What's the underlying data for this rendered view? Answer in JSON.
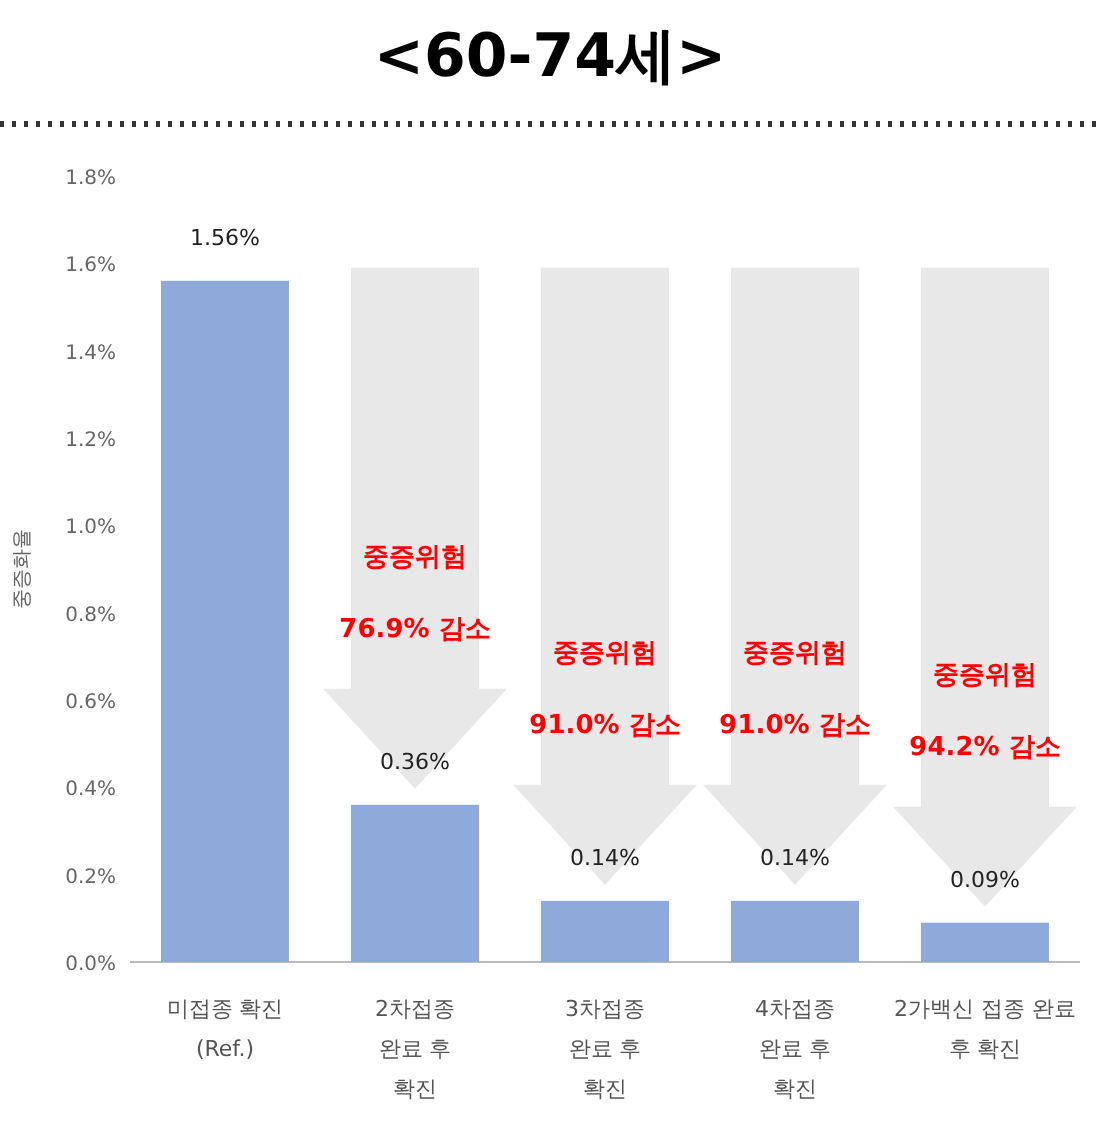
{
  "chart_data": {
    "type": "bar",
    "title": "<60-74세>",
    "ylabel": "중증화율",
    "categories": [
      "미접종 확진\n(Ref.)",
      "2차접종\n완료 후\n확진",
      "3차접종\n완료 후\n확진",
      "4차접종\n완료 후\n확진",
      "2가백신 접종 완료\n후 확진"
    ],
    "values": [
      1.56,
      0.36,
      0.14,
      0.14,
      0.09
    ],
    "value_labels": [
      "1.56%",
      "0.36%",
      "0.14%",
      "0.14%",
      "0.09%"
    ],
    "color": "#8eaadb",
    "ylim": [
      0,
      1.8
    ],
    "yticks": [
      {
        "value": 0,
        "label": "0.0%"
      },
      {
        "value": 0.2,
        "label": "0.2%"
      },
      {
        "value": 0.4,
        "label": "0.4%"
      },
      {
        "value": 0.6,
        "label": "0.6%"
      },
      {
        "value": 0.8,
        "label": "0.8%"
      },
      {
        "value": 1.0,
        "label": "1.0%"
      },
      {
        "value": 1.2,
        "label": "1.2%"
      },
      {
        "value": 1.4,
        "label": "1.4%"
      },
      {
        "value": 1.6,
        "label": "1.6%"
      },
      {
        "value": 1.8,
        "label": "1.8%"
      }
    ],
    "annotations": [
      "중증위험\n76.9% 감소",
      "중증위험\n91.0% 감소",
      "중증위험\n91.0% 감소",
      "중증위험\n94.2% 감소"
    ],
    "grid": false
  }
}
